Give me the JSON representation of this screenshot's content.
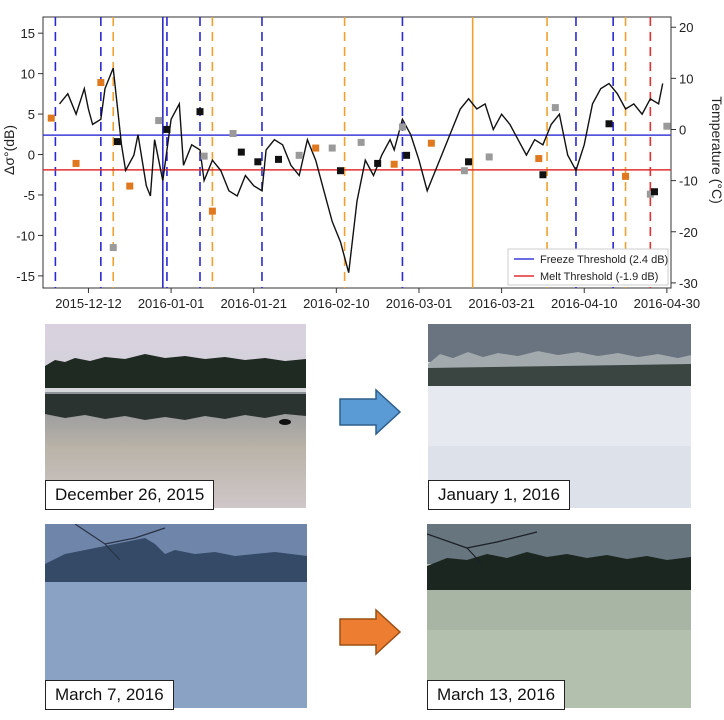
{
  "chart_data": {
    "type": "line+scatter",
    "x_tick_labels": [
      "2015-12-12",
      "2016-01-01",
      "2016-01-21",
      "2016-02-10",
      "2016-03-01",
      "2016-03-21",
      "2016-04-10",
      "2016-04-30"
    ],
    "x_ticks": [
      "2015-12-12",
      "2016-01-01",
      "2016-01-21",
      "2016-02-10",
      "2016-03-01",
      "2016-03-21",
      "2016-04-10",
      "2016-04-30"
    ],
    "xlim": [
      "2015-12-01",
      "2016-05-01"
    ],
    "y_left": {
      "label": "Δσ°(dB)",
      "lim": [
        -16.5,
        17
      ],
      "ticks": [
        -15,
        -10,
        -5,
        0,
        5,
        10,
        15
      ]
    },
    "y_right": {
      "label": "Temperature (°C)",
      "lim": [
        -31,
        22
      ],
      "ticks": [
        -30,
        -20,
        -10,
        0,
        10,
        20
      ]
    },
    "thresholds": [
      {
        "name": "Freeze Threshold (2.4 dB)",
        "value": 2.4,
        "color": "#3b3bd8"
      },
      {
        "name": "Melt Threshold (-1.9 dB)",
        "value": -1.9,
        "color": "#e03030"
      }
    ],
    "vertical_lines": [
      {
        "date": "2015-12-04",
        "color": "#2a2ad0",
        "style": "dashed"
      },
      {
        "date": "2015-12-15",
        "color": "#2a2ad0",
        "style": "dashed"
      },
      {
        "date": "2015-12-18",
        "color": "#f0a030",
        "style": "dashed"
      },
      {
        "date": "2015-12-30",
        "color": "#2a2ad0",
        "style": "solid"
      },
      {
        "date": "2015-12-31",
        "color": "#2a2ad0",
        "style": "dashed"
      },
      {
        "date": "2016-01-08",
        "color": "#2a2ad0",
        "style": "dashed"
      },
      {
        "date": "2016-01-11",
        "color": "#f0a030",
        "style": "dashed"
      },
      {
        "date": "2016-01-23",
        "color": "#2a2ad0",
        "style": "dashed"
      },
      {
        "date": "2016-02-12",
        "color": "#f0a030",
        "style": "dashed"
      },
      {
        "date": "2016-02-26",
        "color": "#2a2ad0",
        "style": "dashed"
      },
      {
        "date": "2016-03-14",
        "color": "#f0a030",
        "style": "solid"
      },
      {
        "date": "2016-04-01",
        "color": "#f0a030",
        "style": "dashed"
      },
      {
        "date": "2016-04-08",
        "color": "#2a2ad0",
        "style": "dashed"
      },
      {
        "date": "2016-04-17",
        "color": "#2a2ad0",
        "style": "dashed"
      },
      {
        "date": "2016-04-20",
        "color": "#f0a030",
        "style": "dashed"
      },
      {
        "date": "2016-04-26",
        "color": "#e03030",
        "style": "dashed"
      }
    ],
    "temperature_series": {
      "dates": [
        "2015-12-05",
        "2015-12-07",
        "2015-12-09",
        "2015-12-11",
        "2015-12-12",
        "2015-12-13",
        "2015-12-15",
        "2015-12-16",
        "2015-12-18",
        "2015-12-20",
        "2015-12-21",
        "2015-12-23",
        "2015-12-24",
        "2015-12-26",
        "2015-12-27",
        "2015-12-28",
        "2015-12-30",
        "2016-01-01",
        "2016-01-03",
        "2016-01-04",
        "2016-01-06",
        "2016-01-08",
        "2016-01-09",
        "2016-01-11",
        "2016-01-13",
        "2016-01-15",
        "2016-01-17",
        "2016-01-19",
        "2016-01-21",
        "2016-01-23",
        "2016-01-24",
        "2016-01-26",
        "2016-01-28",
        "2016-01-30",
        "2016-02-01",
        "2016-02-03",
        "2016-02-05",
        "2016-02-07",
        "2016-02-09",
        "2016-02-11",
        "2016-02-13",
        "2016-02-15",
        "2016-02-17",
        "2016-02-19",
        "2016-02-21",
        "2016-02-23",
        "2016-02-24",
        "2016-02-26",
        "2016-02-28",
        "2016-03-01",
        "2016-03-03",
        "2016-03-05",
        "2016-03-07",
        "2016-03-09",
        "2016-03-11",
        "2016-03-13",
        "2016-03-15",
        "2016-03-17",
        "2016-03-19",
        "2016-03-21",
        "2016-03-23",
        "2016-03-25",
        "2016-03-27",
        "2016-03-29",
        "2016-03-31",
        "2016-04-02",
        "2016-04-04",
        "2016-04-06",
        "2016-04-08",
        "2016-04-10",
        "2016-04-12",
        "2016-04-14",
        "2016-04-16",
        "2016-04-18",
        "2016-04-20",
        "2016-04-22",
        "2016-04-24",
        "2016-04-26",
        "2016-04-28",
        "2016-04-29"
      ],
      "values": [
        5,
        7,
        3,
        8,
        4,
        1,
        2,
        8,
        12,
        -3,
        -8,
        -5,
        -1,
        -11,
        -13,
        -2,
        -10,
        2,
        5,
        -7,
        -3,
        -4,
        -10,
        -6,
        -8,
        -12,
        -13,
        -9,
        -11,
        -12,
        -4,
        -2,
        -3,
        -7,
        -9,
        -2,
        -6,
        -12,
        -18,
        -22,
        -28,
        -14,
        -6,
        -9,
        -5,
        -2,
        -4,
        2,
        -1,
        -6,
        -12,
        -8,
        -4,
        0,
        4,
        6,
        4,
        5,
        0,
        3,
        1,
        -2,
        -5,
        -2,
        -3,
        1,
        3,
        -5,
        -8,
        -3,
        5,
        8,
        9,
        7,
        4,
        5,
        3,
        6,
        5,
        9
      ]
    },
    "marker_series": [
      {
        "name": "orange",
        "color": "#e07820",
        "points": [
          [
            "2015-12-03",
            4.5
          ],
          [
            "2015-12-09",
            -1.1
          ],
          [
            "2015-12-15",
            8.9
          ],
          [
            "2015-12-22",
            -3.9
          ],
          [
            "2016-01-11",
            -7.0
          ],
          [
            "2016-02-05",
            0.8
          ],
          [
            "2016-02-24",
            -1.2
          ],
          [
            "2016-03-04",
            1.4
          ],
          [
            "2016-03-30",
            -0.5
          ],
          [
            "2016-04-20",
            -2.7
          ]
        ]
      },
      {
        "name": "grey",
        "color": "#9a9a9a",
        "points": [
          [
            "2015-12-18",
            -11.5
          ],
          [
            "2015-12-29",
            4.2
          ],
          [
            "2016-01-09",
            -0.2
          ],
          [
            "2016-01-16",
            2.6
          ],
          [
            "2016-02-01",
            -0.1
          ],
          [
            "2016-02-09",
            0.8
          ],
          [
            "2016-02-16",
            1.5
          ],
          [
            "2016-02-26",
            3.4
          ],
          [
            "2016-03-12",
            -2.0
          ],
          [
            "2016-03-18",
            -0.3
          ],
          [
            "2016-04-03",
            5.8
          ],
          [
            "2016-04-26",
            -4.9
          ],
          [
            "2016-04-30",
            3.5
          ]
        ]
      },
      {
        "name": "black",
        "color": "#111111",
        "points": [
          [
            "2015-12-19",
            1.6
          ],
          [
            "2015-12-31",
            3.1
          ],
          [
            "2016-01-08",
            5.3
          ],
          [
            "2016-01-18",
            0.3
          ],
          [
            "2016-01-22",
            -0.9
          ],
          [
            "2016-01-27",
            -0.6
          ],
          [
            "2016-02-11",
            -2.0
          ],
          [
            "2016-02-20",
            -1.1
          ],
          [
            "2016-02-27",
            -0.1
          ],
          [
            "2016-03-13",
            -0.9
          ],
          [
            "2016-03-31",
            -2.5
          ],
          [
            "2016-04-16",
            3.8
          ],
          [
            "2016-04-27",
            -4.6
          ]
        ]
      }
    ],
    "legend": {
      "placement": "bottom-right"
    }
  },
  "photos": [
    {
      "caption": "December 26, 2015",
      "scene": "water"
    },
    {
      "caption": "January 1, 2016",
      "scene": "snow"
    },
    {
      "caption": "March 7, 2016",
      "scene": "dusk-ice"
    },
    {
      "caption": "March 13, 2016",
      "scene": "wet-ice"
    }
  ],
  "arrows": [
    {
      "color": "#5b9bd5",
      "meaning": "freeze"
    },
    {
      "color": "#ed7d31",
      "meaning": "melt"
    }
  ]
}
